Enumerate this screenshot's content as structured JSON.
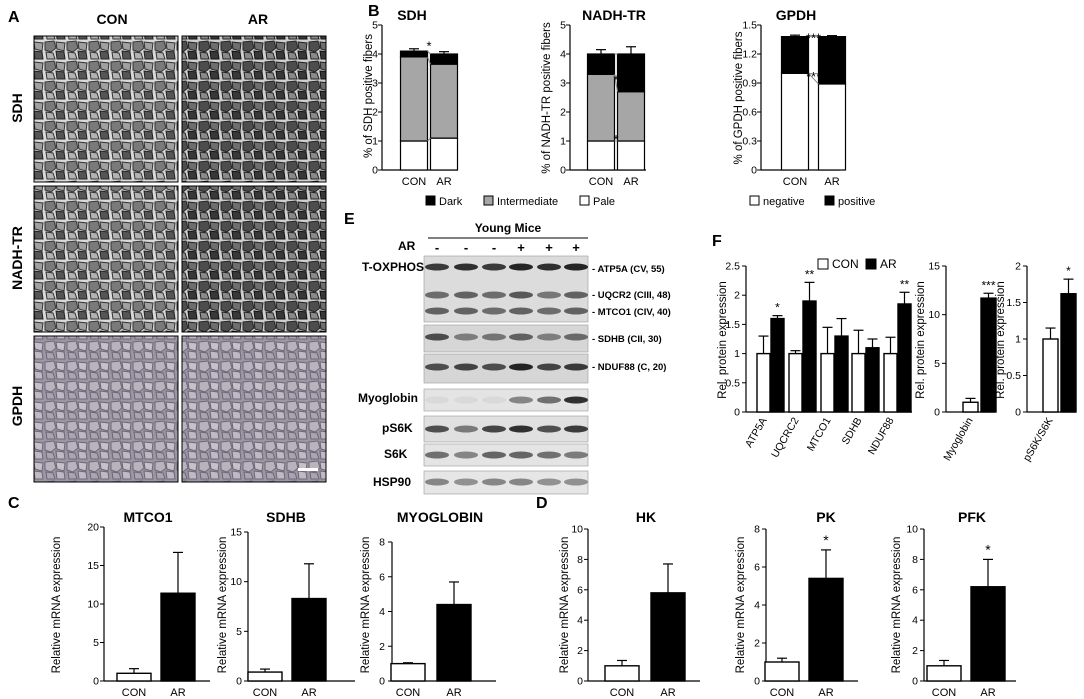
{
  "panel_A": {
    "letter": "A",
    "columns": [
      "CON",
      "AR"
    ],
    "rows": [
      "SDH",
      "NADH-TR",
      "GPDH"
    ]
  },
  "panel_B": {
    "letter": "B",
    "legends": [
      {
        "items": [
          "Dark",
          "Intermediate",
          "Pale"
        ],
        "colors": [
          "#000000",
          "#a6a6a6",
          "#ffffff"
        ]
      },
      {
        "items": [
          "negative",
          "positive"
        ],
        "colors": [
          "#ffffff",
          "#000000"
        ]
      }
    ]
  },
  "panel_C": {
    "letter": "C"
  },
  "panel_D": {
    "letter": "D"
  },
  "panel_E": {
    "letter": "E",
    "group_label": "Young Mice",
    "ar_label": "AR",
    "lane_signs": [
      "-",
      "-",
      "-",
      "+",
      "+",
      "+"
    ],
    "blot_labels": [
      "T-OXPHOS",
      "Myoglobin",
      "pS6K",
      "S6K",
      "HSP90"
    ],
    "band_labels": [
      "- ATP5A (CV, 55)",
      "- UQCR2 (CIII, 48)",
      "- MTCO1 (CIV, 40)",
      "- SDHB (CII, 30)",
      "- NDUF88 (C, 20)"
    ]
  },
  "panel_F": {
    "letter": "F",
    "legend": [
      "CON",
      "AR"
    ]
  },
  "chart_data": [
    {
      "id": "B-SDH",
      "type": "bar",
      "stacked": true,
      "title": "SDH",
      "categories": [
        "CON",
        "AR"
      ],
      "series": [
        {
          "name": "Pale",
          "values": [
            1.0,
            1.1
          ],
          "errors": [
            0.2,
            0.25
          ],
          "color": "#ffffff"
        },
        {
          "name": "Intermediate",
          "values": [
            2.9,
            2.55
          ],
          "color": "#a6a6a6"
        },
        {
          "name": "Dark",
          "values": [
            0.2,
            0.35
          ],
          "errors": [
            0.08,
            0.08
          ],
          "color": "#000000"
        }
      ],
      "ylabel": "% of SDH positive fibers",
      "ylim": [
        0,
        5
      ],
      "yticks": [
        0,
        1,
        2,
        3,
        4,
        5
      ],
      "annotations": [
        "*"
      ]
    },
    {
      "id": "B-NADH",
      "type": "bar",
      "stacked": true,
      "title": "NADH-TR",
      "categories": [
        "CON",
        "AR"
      ],
      "series": [
        {
          "name": "Pale",
          "values": [
            1.0,
            1.0
          ],
          "errors": [
            0.1,
            0.15
          ],
          "color": "#ffffff"
        },
        {
          "name": "Intermediate",
          "values": [
            2.3,
            1.7
          ],
          "color": "#a6a6a6"
        },
        {
          "name": "Dark",
          "values": [
            0.7,
            1.3
          ],
          "errors": [
            0.15,
            0.25
          ],
          "color": "#000000"
        }
      ],
      "ylabel": "% of NADH-TR positive fibers",
      "ylim": [
        0,
        5
      ],
      "yticks": [
        0,
        1,
        2,
        3,
        4,
        5
      ],
      "annotations": [
        "*",
        "*"
      ]
    },
    {
      "id": "B-GPDH",
      "type": "bar",
      "stacked": true,
      "title": "GPDH",
      "categories": [
        "CON",
        "AR"
      ],
      "series": [
        {
          "name": "negative",
          "values": [
            1.0,
            0.89
          ],
          "color": "#ffffff"
        },
        {
          "name": "positive",
          "values": [
            0.38,
            0.49
          ],
          "errors": [
            0.015,
            0.01
          ],
          "color": "#000000"
        }
      ],
      "ylabel": "% of GPDH positive fibers",
      "ylim": [
        0,
        1.5
      ],
      "yticks": [
        0,
        0.3,
        0.6,
        0.9,
        1.2,
        1.5
      ],
      "annotations": [
        "***",
        "***"
      ]
    },
    {
      "id": "C-MTCO1",
      "type": "bar",
      "title": "MTCO1",
      "categories": [
        "CON",
        "AR"
      ],
      "values": [
        1.0,
        11.4
      ],
      "errors": [
        0.6,
        5.3
      ],
      "ylabel": "Relative mRNA expression",
      "ylim": [
        0,
        20
      ],
      "yticks": [
        0,
        5,
        10,
        15,
        20
      ]
    },
    {
      "id": "C-SDHB",
      "type": "bar",
      "title": "SDHB",
      "categories": [
        "CON",
        "AR"
      ],
      "values": [
        0.9,
        8.3
      ],
      "errors": [
        0.3,
        3.5
      ],
      "ylabel": "Relative mRNA expression",
      "ylim": [
        0,
        15
      ],
      "yticks": [
        0,
        5,
        10,
        15
      ]
    },
    {
      "id": "C-MYOGLOBIN",
      "type": "bar",
      "title": "MYOGLOBIN",
      "categories": [
        "CON",
        "AR"
      ],
      "values": [
        1.0,
        4.4
      ],
      "errors": [
        0.05,
        1.3
      ],
      "ylabel": "Relative mRNA expression",
      "ylim": [
        0,
        8
      ],
      "yticks": [
        0,
        2,
        4,
        6,
        8
      ]
    },
    {
      "id": "D-HK",
      "type": "bar",
      "title": "HK",
      "categories": [
        "CON",
        "AR"
      ],
      "values": [
        1.0,
        5.8
      ],
      "errors": [
        0.35,
        1.9
      ],
      "ylabel": "Relative mRNA expression",
      "ylim": [
        0,
        10
      ],
      "yticks": [
        0,
        2,
        4,
        6,
        8,
        10
      ]
    },
    {
      "id": "D-PK",
      "type": "bar",
      "title": "PK",
      "categories": [
        "CON",
        "AR"
      ],
      "values": [
        1.0,
        5.4
      ],
      "errors": [
        0.2,
        1.5
      ],
      "ylabel": "Relative mRNA expression",
      "ylim": [
        0,
        8
      ],
      "yticks": [
        0,
        2,
        4,
        6,
        8
      ],
      "annotations": [
        "*"
      ]
    },
    {
      "id": "D-PFK",
      "type": "bar",
      "title": "PFK",
      "categories": [
        "CON",
        "AR"
      ],
      "values": [
        1.0,
        6.2
      ],
      "errors": [
        0.35,
        1.8
      ],
      "ylabel": "Relative mRNA expression",
      "ylim": [
        0,
        10
      ],
      "yticks": [
        0,
        2,
        4,
        6,
        8,
        10
      ],
      "annotations": [
        "*"
      ]
    },
    {
      "id": "F-OXPHOS",
      "type": "bar",
      "title": "",
      "categories": [
        "ATP5A",
        "UQCRC2",
        "MTCO1",
        "SDHB",
        "NDUF88"
      ],
      "series": [
        {
          "name": "CON",
          "values": [
            1.0,
            1.0,
            1.0,
            1.0,
            1.0
          ],
          "errors": [
            0.3,
            0.05,
            0.45,
            0.4,
            0.28
          ],
          "color": "#ffffff"
        },
        {
          "name": "AR",
          "values": [
            1.6,
            1.9,
            1.3,
            1.1,
            1.85
          ],
          "errors": [
            0.05,
            0.32,
            0.3,
            0.15,
            0.2
          ],
          "color": "#000000"
        }
      ],
      "ylabel": "Rel. protein expression",
      "ylim": [
        0,
        2.5
      ],
      "yticks": [
        0.0,
        0.5,
        1.0,
        1.5,
        2.0,
        2.5
      ],
      "annotations": [
        "*",
        "**",
        "",
        "",
        "**"
      ]
    },
    {
      "id": "F-Myoglobin",
      "type": "bar",
      "title": "",
      "categories": [
        "Myoglobin"
      ],
      "series": [
        {
          "name": "CON",
          "values": [
            1.0
          ],
          "errors": [
            0.4
          ],
          "color": "#ffffff"
        },
        {
          "name": "AR",
          "values": [
            11.7
          ],
          "errors": [
            0.5
          ],
          "color": "#000000"
        }
      ],
      "ylabel": "Rel. protein expression",
      "ylim": [
        0,
        15
      ],
      "yticks": [
        0,
        5,
        10,
        15
      ],
      "annotations": [
        "***"
      ]
    },
    {
      "id": "F-pS6K",
      "type": "bar",
      "title": "",
      "categories": [
        "pS6K/S6K"
      ],
      "series": [
        {
          "name": "CON",
          "values": [
            1.0
          ],
          "errors": [
            0.15
          ],
          "color": "#ffffff"
        },
        {
          "name": "AR",
          "values": [
            1.62
          ],
          "errors": [
            0.2
          ],
          "color": "#000000"
        }
      ],
      "ylabel": "Rel. protein expression",
      "ylim": [
        0,
        2.0
      ],
      "yticks": [
        0.0,
        0.5,
        1.0,
        1.5,
        2.0
      ],
      "annotations": [
        "*"
      ]
    }
  ]
}
